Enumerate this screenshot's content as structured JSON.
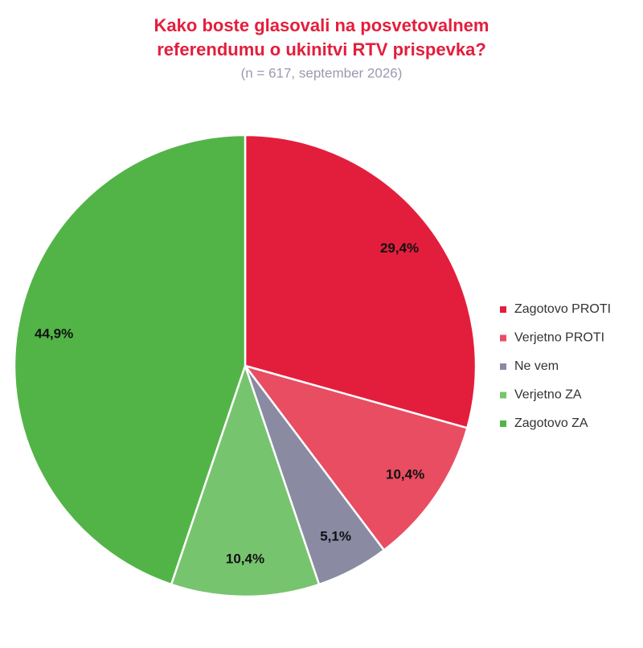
{
  "chart_data": {
    "type": "pie",
    "title": [
      "Kako boste glasovali na posvetovalnem",
      "referendumu o ukinitvi RTV prispevka?"
    ],
    "subtitle": "(n = 617, september 2026)",
    "categories": [
      "Zagotovo PROTI",
      "Verjetno PROTI",
      "Ne vem",
      "Verjetno ZA",
      "Zagotovo ZA"
    ],
    "values": [
      29.4,
      10.4,
      5.1,
      10.4,
      44.9
    ],
    "value_labels": [
      "29,4%",
      "10,4%",
      "5,1%",
      "10,4%",
      "44,9%"
    ],
    "colors": [
      "#e31e3c",
      "#e84d62",
      "#8a8aa3",
      "#77c46e",
      "#52b447"
    ],
    "legend": "right"
  }
}
